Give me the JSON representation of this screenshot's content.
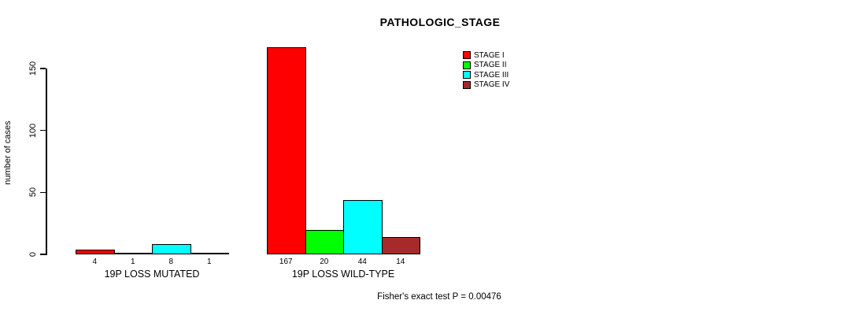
{
  "chart_data": {
    "type": "bar",
    "title": "PATHOLOGIC_STAGE",
    "categories": [
      "19P LOSS MUTATED",
      "19P LOSS WILD-TYPE"
    ],
    "series": [
      {
        "name": "STAGE I",
        "color": "#FF0000",
        "values": [
          4,
          167
        ]
      },
      {
        "name": "STAGE II",
        "color": "#00FF00",
        "values": [
          1,
          20
        ]
      },
      {
        "name": "STAGE III",
        "color": "#00FFFF",
        "values": [
          8,
          44
        ]
      },
      {
        "name": "STAGE IV",
        "color": "#A52A2A",
        "values": [
          1,
          14
        ]
      }
    ],
    "xlabel": "",
    "ylabel": "number of cases",
    "ylim": [
      0,
      150
    ],
    "yticks": [
      0,
      50,
      100,
      150
    ],
    "grid": false,
    "legend_position": "top-right",
    "bar_value_labels": true,
    "annotation": "Fisher's exact test P = 0.00476"
  },
  "colors": {
    "background": "#FFFFFF",
    "axis": "#000000",
    "text": "#000000"
  }
}
